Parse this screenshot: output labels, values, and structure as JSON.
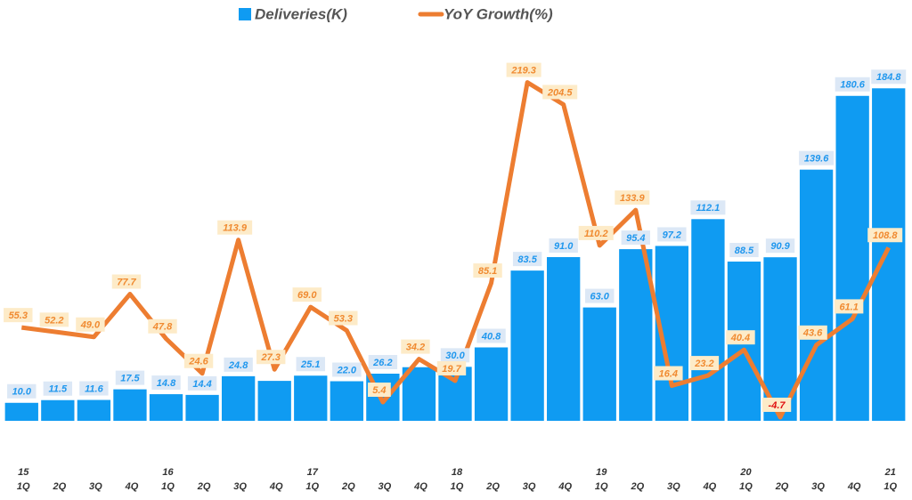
{
  "chart_data": {
    "type": "bar-line",
    "categories": [
      "1Q",
      "2Q",
      "3Q",
      "4Q",
      "1Q",
      "2Q",
      "3Q",
      "4Q",
      "1Q",
      "2Q",
      "3Q",
      "4Q",
      "1Q",
      "2Q",
      "3Q",
      "4Q",
      "1Q",
      "2Q",
      "3Q",
      "4Q",
      "1Q",
      "2Q",
      "3Q",
      "4Q",
      "1Q"
    ],
    "years": [
      "15",
      null,
      null,
      null,
      "16",
      null,
      null,
      null,
      "17",
      null,
      null,
      null,
      "18",
      null,
      null,
      null,
      "19",
      null,
      null,
      null,
      "20",
      null,
      null,
      null,
      "21"
    ],
    "series": [
      {
        "name": "Deliveries(K)",
        "type": "bar",
        "color": "#0f9bf2",
        "label_color": "#1f97ee",
        "label_bg": "#dce8f6",
        "values": [
          10.0,
          11.5,
          11.6,
          17.5,
          14.8,
          14.4,
          24.8,
          22.2,
          25.1,
          22.0,
          26.2,
          29.8,
          30.0,
          40.8,
          83.5,
          91.0,
          63.0,
          95.4,
          97.2,
          112.1,
          88.5,
          90.9,
          139.6,
          180.6,
          184.8
        ],
        "value_labels": [
          "10.0",
          "11.5",
          "11.6",
          "17.5",
          "14.8",
          "14.4",
          "24.8",
          null,
          "25.1",
          "22.0",
          "26.2",
          null,
          "30.0",
          "40.8",
          "83.5",
          "91.0",
          "63.0",
          "95.4",
          "97.2",
          "112.1",
          "88.5",
          "90.9",
          "139.6",
          "180.6",
          "184.8"
        ]
      },
      {
        "name": "YoY Growth(%)",
        "type": "line",
        "axis": "y2",
        "color": "#ed7d31",
        "label_color": "#f08a30",
        "label_bg": "#fdebc8",
        "negative_color": "#e01010",
        "values": [
          55.3,
          52.2,
          49.0,
          77.7,
          47.8,
          24.6,
          113.9,
          27.3,
          69.0,
          53.3,
          5.4,
          34.2,
          19.7,
          85.1,
          219.3,
          204.5,
          110.2,
          133.9,
          16.4,
          23.2,
          40.4,
          -4.7,
          43.6,
          61.1,
          108.8
        ],
        "value_labels": [
          "55.3",
          "52.2",
          "49.0",
          "77.7",
          "47.8",
          "24.6",
          "113.9",
          "27.3",
          "69.0",
          "53.3",
          "5.4",
          "34.2",
          "19.7",
          "85.1",
          "219.3",
          "204.5",
          "110.2",
          "133.9",
          "16.4",
          "23.2",
          "40.4",
          "-4.7",
          "43.6",
          "61.1",
          "108.8"
        ]
      }
    ],
    "ylim": [
      0,
      224
    ],
    "y2lim": [
      -7.1,
      262.5
    ]
  }
}
